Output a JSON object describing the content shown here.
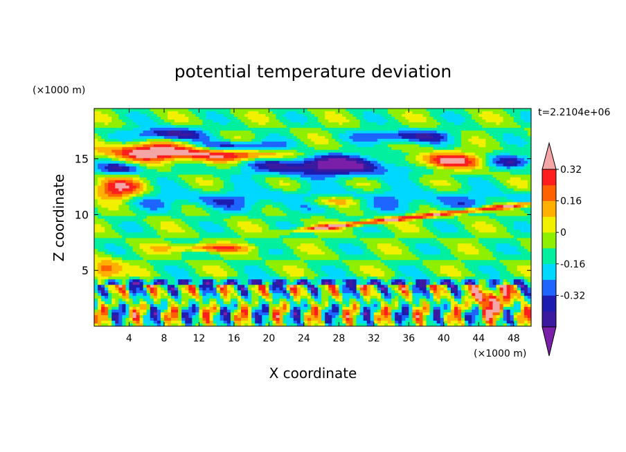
{
  "chart_data": {
    "type": "heatmap",
    "title": "potential temperature deviation",
    "xlabel": "X coordinate",
    "ylabel": "Z coordinate",
    "x_unit": "(×1000 m)",
    "y_unit": "(×1000 m)",
    "time_label": "t=2.2104e+06",
    "xlim": [
      0,
      50
    ],
    "ylim": [
      0,
      19.5
    ],
    "x_ticks": [
      4,
      8,
      12,
      16,
      20,
      24,
      28,
      32,
      36,
      40,
      44,
      48
    ],
    "y_ticks": [
      5,
      10,
      15
    ],
    "colorbar": {
      "levels": [
        -0.48,
        -0.4,
        -0.32,
        -0.24,
        -0.16,
        -0.08,
        0,
        0.08,
        0.16,
        0.24,
        0.32,
        0.4
      ],
      "colors": [
        "#7a1fa8",
        "#3b1aa0",
        "#1c1cb0",
        "#1e64ff",
        "#00d8ff",
        "#00f0a0",
        "#8ef000",
        "#f0f000",
        "#ffb000",
        "#ff6000",
        "#ff1e1e",
        "#f4a6a6"
      ],
      "tick_labels": [
        "0.32",
        "0.16",
        "0",
        "-0.16",
        "-0.32"
      ],
      "tick_values": [
        0.32,
        0.16,
        0,
        -0.16,
        -0.32
      ]
    }
  }
}
